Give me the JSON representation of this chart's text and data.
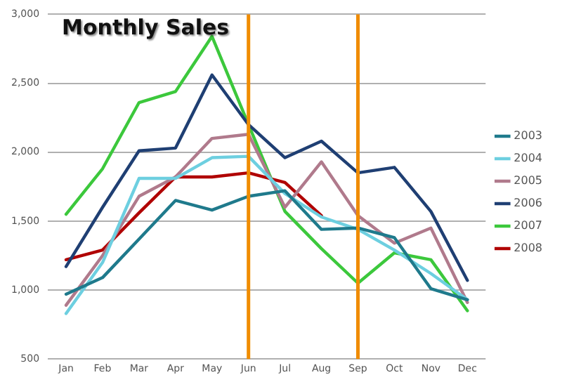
{
  "chart_data": {
    "type": "line",
    "title": "Monthly Sales",
    "categories": [
      "Jan",
      "Feb",
      "Mar",
      "Apr",
      "May",
      "Jun",
      "Jul",
      "Aug",
      "Sep",
      "Oct",
      "Nov",
      "Dec"
    ],
    "series": [
      {
        "name": "2003",
        "color": "#1f7a8c",
        "values": [
          970,
          1090,
          1370,
          1650,
          1580,
          1680,
          1720,
          1440,
          1450,
          1380,
          1010,
          930
        ]
      },
      {
        "name": "2004",
        "color": "#6dcfe0",
        "values": [
          830,
          1200,
          1810,
          1810,
          1960,
          1970,
          1700,
          1530,
          1440,
          1290,
          1120,
          930
        ]
      },
      {
        "name": "2005",
        "color": "#b07a8c",
        "values": [
          890,
          1250,
          1680,
          1820,
          2100,
          2130,
          1600,
          1930,
          1540,
          1340,
          1450,
          910
        ]
      },
      {
        "name": "2006",
        "color": "#1f3f73",
        "values": [
          1170,
          1600,
          2010,
          2030,
          2560,
          2200,
          1960,
          2080,
          1850,
          1890,
          1570,
          1070
        ]
      },
      {
        "name": "2007",
        "color": "#3cc83c",
        "values": [
          1550,
          1880,
          2360,
          2440,
          2840,
          2200,
          1570,
          1300,
          1050,
          1270,
          1220,
          850
        ]
      },
      {
        "name": "2008",
        "color": "#b00000",
        "values": [
          1220,
          1290,
          1560,
          1820,
          1820,
          1850,
          1780,
          1540,
          null,
          null,
          null,
          null
        ]
      }
    ],
    "ylim": [
      500,
      3000
    ],
    "yticks": [
      {
        "value": 500,
        "label": "500"
      },
      {
        "value": 1000,
        "label": "1,000"
      },
      {
        "value": 1500,
        "label": "1,500"
      },
      {
        "value": 2000,
        "label": "2,000"
      },
      {
        "value": 2500,
        "label": "2,500"
      },
      {
        "value": 3000,
        "label": "3,000"
      }
    ],
    "ref_lines": [
      {
        "axis": "x",
        "value": "Jun",
        "color": "#f08c00"
      },
      {
        "axis": "x",
        "value": "Sep",
        "color": "#f08c00"
      }
    ],
    "grid": "y",
    "legend": "right",
    "marker": "none",
    "line_style": "solid"
  }
}
